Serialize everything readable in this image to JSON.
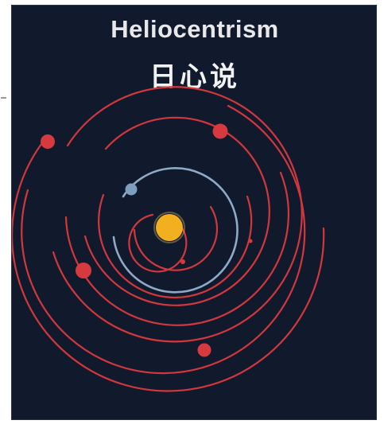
{
  "figure": {
    "title": "Heliocentrism",
    "subtitle": "日心说"
  },
  "colors": {
    "background": "#101a2c",
    "orbit": "#d2373d",
    "earth_orbit": "#8fa9c6",
    "sun": "#f2b021",
    "planet": "#d63a3f",
    "earth": "#7f9fc0",
    "text": "#f0f0f0"
  },
  "diagram": {
    "center": "sun",
    "orbits": [
      "orbit-1",
      "orbit-2",
      "earth-orbit",
      "orbit-4",
      "orbit-5",
      "orbit-6",
      "orbit-7",
      "orbit-8",
      "orbit-9"
    ]
  }
}
